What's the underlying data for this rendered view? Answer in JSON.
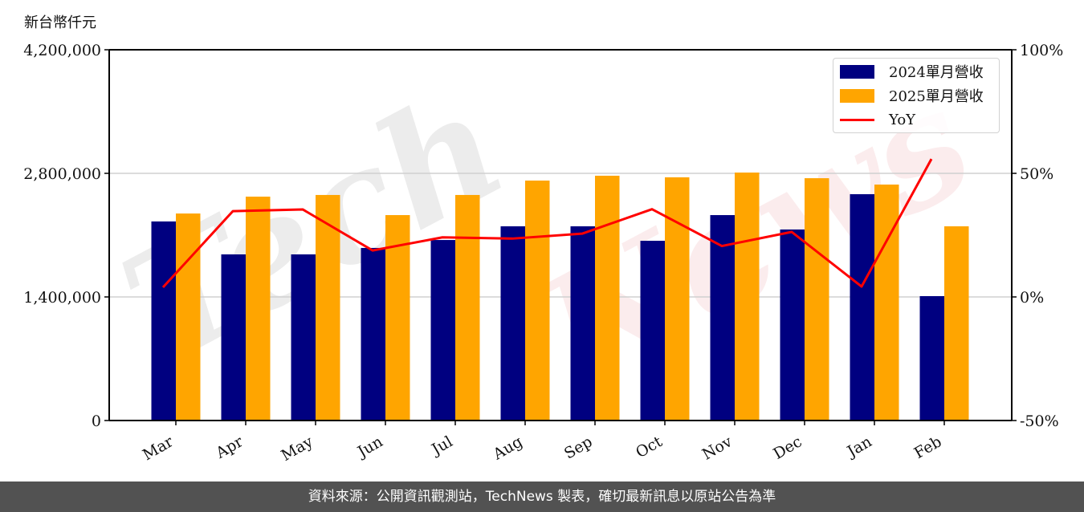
{
  "chart_data": {
    "type": "bar+line",
    "title": "",
    "ylabel": "新台幣仟元",
    "xlabel": "",
    "categories": [
      "Mar",
      "Apr",
      "May",
      "Jun",
      "Jul",
      "Aug",
      "Sep",
      "Oct",
      "Nov",
      "Dec",
      "Jan",
      "Feb"
    ],
    "series": [
      {
        "name": "2024單月營收",
        "type": "bar",
        "axis": "left",
        "color": "#000080",
        "values": [
          2255000,
          1882000,
          1882000,
          1955000,
          2045000,
          2200000,
          2200000,
          2036000,
          2327000,
          2164000,
          2564000,
          1409000
        ]
      },
      {
        "name": "2025單月營收",
        "type": "bar",
        "axis": "left",
        "color": "#FFA500",
        "values": [
          2345000,
          2536000,
          2555000,
          2327000,
          2555000,
          2718000,
          2773000,
          2755000,
          2809000,
          2745000,
          2673000,
          2200000
        ]
      },
      {
        "name": "YoY",
        "type": "line",
        "axis": "right",
        "color": "#FF0000",
        "unit": "%",
        "values": [
          3.9,
          34.7,
          35.4,
          18.8,
          24.1,
          23.6,
          25.6,
          35.5,
          20.6,
          26.3,
          4.2,
          55.8
        ]
      }
    ],
    "left_axis": {
      "ylim": [
        0,
        4200000
      ],
      "ticks": [
        0,
        1400000,
        2800000,
        4200000
      ],
      "tick_labels": [
        "0",
        "1,400,000",
        "2,800,000",
        "4,200,000"
      ]
    },
    "right_axis": {
      "ylim": [
        -50,
        100
      ],
      "ticks": [
        -50,
        0,
        50,
        100
      ],
      "tick_labels": [
        "-50%",
        "0%",
        "50%",
        "100%"
      ]
    },
    "grid": {
      "horizontal": true,
      "lines_at": [
        1400000,
        2800000
      ]
    },
    "legend": {
      "position": "upper right",
      "entries": [
        "2024單月營收",
        "2025單月營收",
        "YoY"
      ]
    },
    "xtick_rotation": 30
  },
  "header": {
    "unit_label": "新台幣仟元"
  },
  "legend": {
    "items": [
      {
        "label": "2024單月營收",
        "color": "#000080",
        "kind": "bar"
      },
      {
        "label": "2025單月營收",
        "color": "#FFA500",
        "kind": "bar"
      },
      {
        "label": "YoY",
        "color": "#FF0000",
        "kind": "line"
      }
    ]
  },
  "watermark": {
    "part1": "Tech",
    "part2": "News"
  },
  "footer": {
    "text": "資料來源：公開資訊觀測站，TechNews 製表，確切最新訊息以原站公告為準"
  }
}
